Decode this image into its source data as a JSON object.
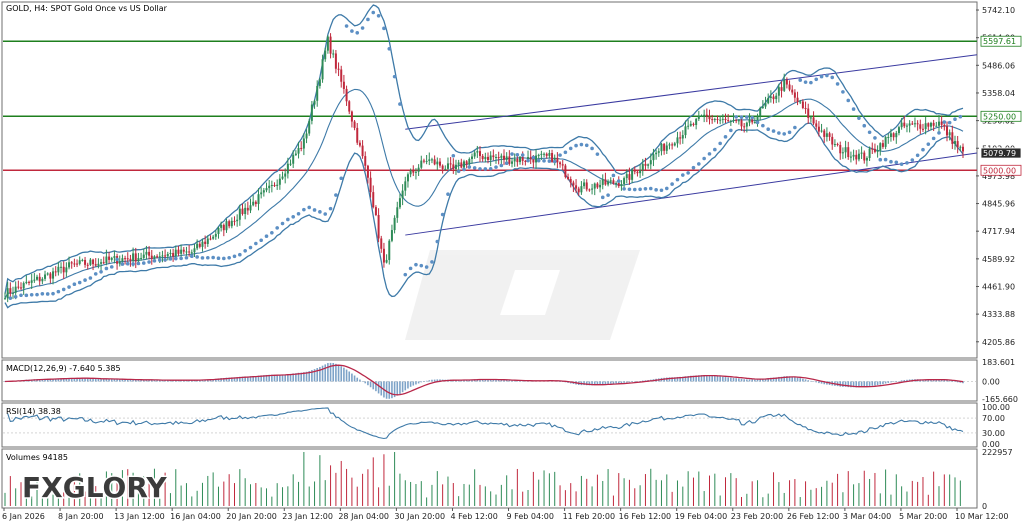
{
  "chart_title": "GOLD, H4:  SPOT Gold Once vs US Dollar",
  "brand": {
    "name": "FXGLORY"
  },
  "colors": {
    "bull": "#2e8b57",
    "bear": "#c0283c",
    "band": "#3e7aa8",
    "sar": "#5c8fc4",
    "level_green": "#1e7f1e",
    "level_red": "#c0283c",
    "channel": "#3a3aa0",
    "macd_hist": "#7da3c8",
    "macd_signal": "#b8284a",
    "rsi_line": "#3e7aa8",
    "grid": "#d8dde3",
    "frame": "#6f6f6f"
  },
  "price_axis": {
    "ticks": [
      "5742.10",
      "5614.00",
      "5486.06",
      "5358.04",
      "5230.02",
      "5102.00",
      "4973.98",
      "4845.96",
      "4717.94",
      "4589.92",
      "4461.90",
      "4333.88",
      "4205.86"
    ],
    "ylim": [
      4140,
      5770
    ]
  },
  "level_tags": [
    {
      "label": "5597.61",
      "value": 5597.61,
      "color": "green"
    },
    {
      "label": "5250.00",
      "value": 5250.0,
      "color": "green"
    },
    {
      "label": "5079.79",
      "value": 5079.79,
      "color": "dark"
    },
    {
      "label": "5000.00",
      "value": 5000.0,
      "color": "red"
    }
  ],
  "time_axis": {
    "labels": [
      "6 Jan 2026",
      "8 Jan 20:00",
      "13 Jan 12:00",
      "16 Jan 04:00",
      "20 Jan 20:00",
      "23 Jan 12:00",
      "28 Jan 04:00",
      "30 Jan 20:00",
      "4 Feb 12:00",
      "9 Feb 04:00",
      "11 Feb 20:00",
      "16 Feb 12:00",
      "19 Feb 04:00",
      "23 Feb 20:00",
      "26 Feb 12:00",
      "3 Mar 04:00",
      "5 Mar 20:00",
      "10 Mar 12:00"
    ]
  },
  "macd_panel": {
    "label": "MACD(12,26,9) -7.640 5.385",
    "ticks": [
      "183.601",
      "0.00",
      "-165.660"
    ]
  },
  "rsi_panel": {
    "label": "RSI(14) 38.38",
    "ticks": [
      "100.00",
      "70.00",
      "30.00",
      "0.00"
    ]
  },
  "volume_panel": {
    "label": "Volumes 94185",
    "ticks": [
      "222957",
      "0"
    ]
  },
  "chart_data": {
    "type": "candlestick",
    "symbol": "GOLD",
    "timeframe": "H4",
    "title": "GOLD, H4:  SPOT Gold Once vs US Dollar",
    "y_range": [
      4140,
      5770
    ],
    "horizontal_levels": [
      5597.61,
      5250.0,
      5000.0
    ],
    "last_price": 5079.79,
    "ascending_channel": {
      "upper_start": 5190,
      "upper_end": 5535,
      "lower_start": 4700,
      "lower_end": 5080
    },
    "price_path_anchors": [
      {
        "i": 0,
        "v": 4430
      },
      {
        "i": 25,
        "v": 4560
      },
      {
        "i": 50,
        "v": 4600
      },
      {
        "i": 70,
        "v": 4620
      },
      {
        "i": 100,
        "v": 4920
      },
      {
        "i": 112,
        "v": 5130
      },
      {
        "i": 121,
        "v": 5600
      },
      {
        "i": 128,
        "v": 5330
      },
      {
        "i": 137,
        "v": 4920
      },
      {
        "i": 142,
        "v": 4555
      },
      {
        "i": 150,
        "v": 4960
      },
      {
        "i": 158,
        "v": 5050
      },
      {
        "i": 168,
        "v": 5000
      },
      {
        "i": 176,
        "v": 5070
      },
      {
        "i": 190,
        "v": 5050
      },
      {
        "i": 205,
        "v": 5060
      },
      {
        "i": 215,
        "v": 4920
      },
      {
        "i": 232,
        "v": 4950
      },
      {
        "i": 246,
        "v": 5100
      },
      {
        "i": 262,
        "v": 5250
      },
      {
        "i": 278,
        "v": 5200
      },
      {
        "i": 292,
        "v": 5400
      },
      {
        "i": 303,
        "v": 5220
      },
      {
        "i": 312,
        "v": 5100
      },
      {
        "i": 322,
        "v": 5060
      },
      {
        "i": 336,
        "v": 5200
      },
      {
        "i": 350,
        "v": 5220
      },
      {
        "i": 359,
        "v": 5080
      }
    ],
    "indicators": [
      "Bollinger Bands",
      "Parabolic SAR",
      "MACD(12,26,9)",
      "RSI(14)",
      "Volumes"
    ],
    "macd": {
      "value": -7.64,
      "signal": 5.385,
      "range": [
        -165.66,
        183.601
      ]
    },
    "rsi": {
      "value": 38.38,
      "levels": [
        70,
        30
      ],
      "range": [
        0,
        100
      ]
    },
    "volume": {
      "last": 94185,
      "max": 222957
    }
  }
}
